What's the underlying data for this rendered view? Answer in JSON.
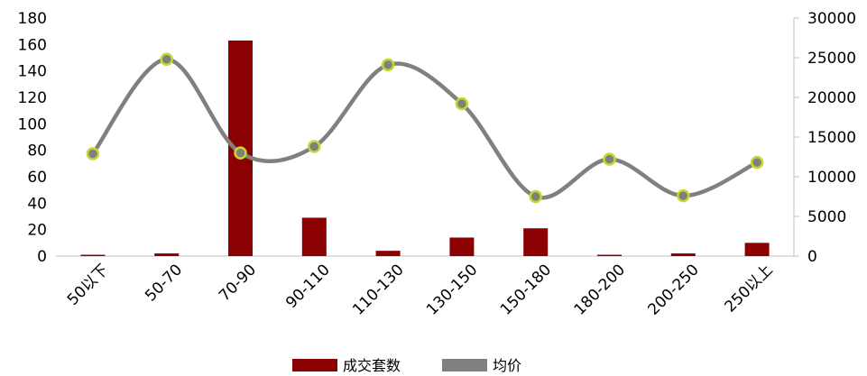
{
  "chart_data": {
    "type": "bar+line",
    "title": "",
    "categories": [
      "50以下",
      "50-70",
      "70-90",
      "90-110",
      "110-130",
      "130-150",
      "150-180",
      "180-200",
      "200-250",
      "250以上"
    ],
    "series": [
      {
        "name": "成交套数",
        "type": "bar",
        "axis": "left",
        "color": "#8B0000",
        "values": [
          1,
          2,
          163,
          29,
          4,
          14,
          21,
          1,
          2,
          10
        ]
      },
      {
        "name": "均价",
        "type": "line",
        "axis": "right",
        "color": "#808080",
        "marker_fill": "#808080",
        "marker_stroke": "#C4D82D",
        "values": [
          12900,
          24800,
          13000,
          13800,
          24100,
          19200,
          7500,
          12200,
          7600,
          11800
        ]
      }
    ],
    "y_left": {
      "ylim": [
        0,
        180
      ],
      "ticks": [
        "0",
        "20",
        "40",
        "60",
        "80",
        "100",
        "120",
        "140",
        "160",
        "180"
      ]
    },
    "y_right": {
      "ylim": [
        0,
        30000
      ],
      "ticks": [
        "0",
        "5000",
        "10000",
        "15000",
        "20000",
        "25000",
        "30000"
      ]
    },
    "grid": false,
    "legend_position": "bottom-center"
  }
}
